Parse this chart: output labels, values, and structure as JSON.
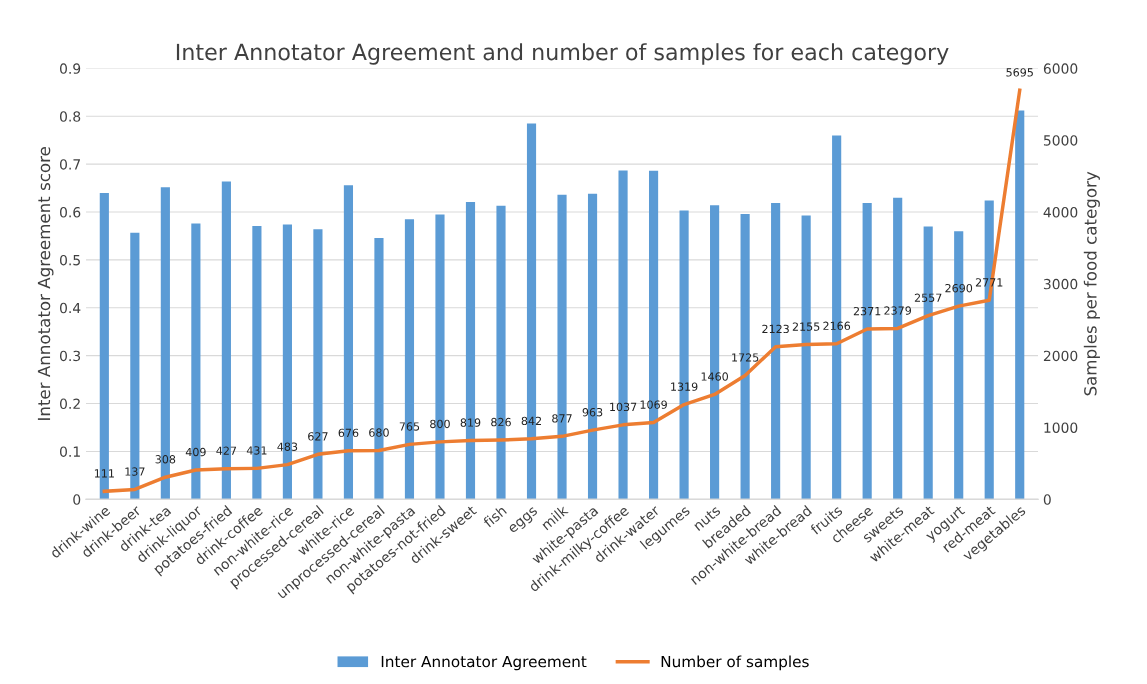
{
  "chart_data": {
    "type": "bar",
    "title": "Inter Annotator Agreement and number of samples for each category",
    "categories": [
      "drink-wine",
      "drink-beer",
      "drink-tea",
      "drink-liquor",
      "potatoes-fried",
      "drink-coffee",
      "non-white-rice",
      "processed-cereal",
      "white-rice",
      "unprocessed-cereal",
      "non-white-pasta",
      "potatoes-not-fried",
      "drink-sweet",
      "fish",
      "eggs",
      "milk",
      "white-pasta",
      "drink-milky-coffee",
      "drink-water",
      "legumes",
      "nuts",
      "breaded",
      "non-white-bread",
      "white-bread",
      "fruits",
      "cheese",
      "sweets",
      "white-meat",
      "yogurt",
      "red-meat",
      "vegetables"
    ],
    "ylabel": "Inter Annotator Agreement score",
    "y2label": "Samples per food category",
    "ylim": [
      0,
      0.9
    ],
    "yticks": [
      0,
      0.1,
      0.2,
      0.3,
      0.4,
      0.5,
      0.6,
      0.7,
      0.8,
      0.9
    ],
    "y2lim": [
      0,
      6000
    ],
    "y2ticks": [
      0,
      1000,
      2000,
      3000,
      4000,
      5000,
      6000
    ],
    "grid": "y",
    "legend": "bottom",
    "series": [
      {
        "name": "Inter Annotator Agreement",
        "color": "#5b9bd5",
        "values": [
          0.64,
          0.557,
          0.652,
          0.576,
          0.664,
          0.571,
          0.574,
          0.564,
          0.656,
          0.546,
          0.585,
          0.595,
          0.621,
          0.613,
          0.785,
          0.636,
          0.638,
          0.687,
          0.686,
          0.603,
          0.614,
          0.596,
          0.619,
          0.593,
          0.76,
          0.619,
          0.63,
          0.57,
          0.56,
          0.624,
          0.812
        ]
      },
      {
        "name": "Number of samples",
        "type": "line",
        "axis": "y2",
        "color": "#ed7d31",
        "data_labels": true,
        "values": [
          111,
          137,
          308,
          409,
          427,
          431,
          483,
          627,
          676,
          680,
          765,
          800,
          819,
          826,
          842,
          877,
          963,
          1037,
          1069,
          1319,
          1460,
          1725,
          2123,
          2155,
          2166,
          2371,
          2379,
          2557,
          2690,
          2771,
          5695
        ]
      }
    ]
  }
}
